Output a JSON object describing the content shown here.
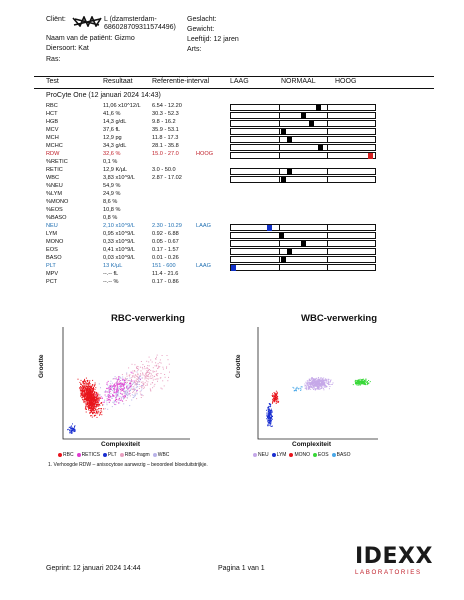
{
  "header": {
    "client_label": "Cliënt:",
    "client_value": "L (dzamsterdam-686028709311574496)",
    "patient_label": "Naam van de patiënt:",
    "patient_value": "Gizmo",
    "species_label": "Diersoort:",
    "species_value": "Kat",
    "breed_label": "Ras:",
    "breed_value": "",
    "sex_label": "Geslacht:",
    "weight_label": "Gewicht:",
    "age_label": "Leeftijd:",
    "age_value": "12 jaren",
    "vet_label": "Arts:"
  },
  "table": {
    "col_test": "Test",
    "col_result": "Resultaat",
    "col_ref": "Referentie-interval",
    "col_low": "LAAG",
    "col_normal": "NORMAAL",
    "col_high": "HOOG",
    "section": "ProCyte One (12 januari 2024 14:43)",
    "rows": [
      {
        "test": "RBC",
        "result": "11,06 x10^12/L",
        "ref": "6.54 - 12.20",
        "flag": "",
        "bar": true,
        "marker": 0.61,
        "color": "normal"
      },
      {
        "test": "HCT",
        "result": "41,6 %",
        "ref": "30.3 - 52.3",
        "flag": "",
        "bar": true,
        "marker": 0.5,
        "color": "normal"
      },
      {
        "test": "HGB",
        "result": "14,3 g/dL",
        "ref": "9.8 - 16.2",
        "flag": "",
        "bar": true,
        "marker": 0.56,
        "color": "normal"
      },
      {
        "test": "MCV",
        "result": "37,6 fL",
        "ref": "35.9 - 53.1",
        "flag": "",
        "bar": true,
        "marker": 0.36,
        "color": "normal"
      },
      {
        "test": "MCH",
        "result": "12,9 pg",
        "ref": "11.8 - 17.3",
        "flag": "",
        "bar": true,
        "marker": 0.4,
        "color": "normal"
      },
      {
        "test": "MCHC",
        "result": "34,3 g/dL",
        "ref": "28.1 - 35.8",
        "flag": "",
        "bar": true,
        "marker": 0.62,
        "color": "normal"
      },
      {
        "test": "RDW",
        "result": "32,6 %",
        "ref": "15.0 - 27.0",
        "flag": "HOOG",
        "bar": true,
        "marker": 0.98,
        "color": "high"
      },
      {
        "test": "%RETIC",
        "result": "0,1 %",
        "ref": "",
        "flag": "",
        "bar": false,
        "marker": 0,
        "color": "normal"
      },
      {
        "test": "RETIC",
        "result": "12,9 K/µL",
        "ref": "3.0 - 50.0",
        "flag": "",
        "bar": true,
        "marker": 0.4,
        "color": "normal"
      },
      {
        "test": "WBC",
        "result": "3,83 x10^9/L",
        "ref": "2.87 - 17.02",
        "flag": "",
        "bar": true,
        "marker": 0.36,
        "color": "normal"
      },
      {
        "test": "%NEU",
        "result": "54,9 %",
        "ref": "",
        "flag": "",
        "bar": false,
        "marker": 0,
        "color": "normal"
      },
      {
        "test": "%LYM",
        "result": "24,9 %",
        "ref": "",
        "flag": "",
        "bar": false,
        "marker": 0,
        "color": "normal"
      },
      {
        "test": "%MONO",
        "result": "8,6 %",
        "ref": "",
        "flag": "",
        "bar": false,
        "marker": 0,
        "color": "normal"
      },
      {
        "test": "%EOS",
        "result": "10,8 %",
        "ref": "",
        "flag": "",
        "bar": false,
        "marker": 0,
        "color": "normal"
      },
      {
        "test": "%BASO",
        "result": "0,8 %",
        "ref": "",
        "flag": "",
        "bar": false,
        "marker": 0,
        "color": "normal"
      },
      {
        "test": "NEU",
        "result": "2,10 x10^9/L",
        "ref": "2.30 - 10.29",
        "flag": "LAAG",
        "bar": true,
        "marker": 0.26,
        "color": "low"
      },
      {
        "test": "LYM",
        "result": "0,95 x10^9/L",
        "ref": "0.92 - 6.88",
        "flag": "",
        "bar": true,
        "marker": 0.34,
        "color": "normal"
      },
      {
        "test": "MONO",
        "result": "0,33 x10^9/L",
        "ref": "0.05 - 0.67",
        "flag": "",
        "bar": true,
        "marker": 0.5,
        "color": "normal"
      },
      {
        "test": "EOS",
        "result": "0,41 x10^9/L",
        "ref": "0.17 - 1.57",
        "flag": "",
        "bar": true,
        "marker": 0.4,
        "color": "normal"
      },
      {
        "test": "BASO",
        "result": "0,03 x10^9/L",
        "ref": "0.01 - 0.26",
        "flag": "",
        "bar": true,
        "marker": 0.36,
        "color": "normal"
      },
      {
        "test": "PLT",
        "result": "13 K/µL",
        "ref": "151 - 600",
        "flag": "LAAG",
        "bar": true,
        "marker": 0.0,
        "color": "low"
      },
      {
        "test": "MPV",
        "result": "--.-- fL",
        "ref": "11.4 - 21.6",
        "flag": "",
        "bar": false,
        "marker": 0,
        "color": "normal"
      },
      {
        "test": "PCT",
        "result": "--.-- %",
        "ref": "0.17 - 0.86",
        "flag": "",
        "bar": false,
        "marker": 0,
        "color": "normal"
      }
    ]
  },
  "plots": {
    "rbc_title": "RBC-verwerking",
    "wbc_title": "WBC-verwerking",
    "y_label": "Grootte",
    "x_label": "Complexiteit",
    "rbc_legend": [
      "RBC",
      "RETICS",
      "PLT",
      "RBC-fragm",
      "WBC"
    ],
    "rbc_legend_colors": [
      "#e8141c",
      "#e03ad0",
      "#1a2fd0",
      "#e8a0c0",
      "#b9b3e8"
    ],
    "wbc_legend": [
      "NEU",
      "LYM",
      "MONO",
      "EOS",
      "BASO"
    ],
    "wbc_legend_colors": [
      "#c5a8e8",
      "#1a2fd0",
      "#e8141c",
      "#38d838",
      "#4aa8e8"
    ]
  },
  "footnote": "1. Verhoogde RDW – anisocytose aanwezig – beoordeel bloeduitstrijkje.",
  "footer": {
    "printed": "Geprint: 12 januari 2024 14:44",
    "page": "Pagina 1 van 1",
    "logo_main": "IDEXX",
    "logo_sub": "LABORATORIES"
  },
  "colors": {
    "high": "#c0202a",
    "low": "#1f6fb2",
    "high_marker": "#d42020",
    "low_marker": "#1030c8"
  }
}
